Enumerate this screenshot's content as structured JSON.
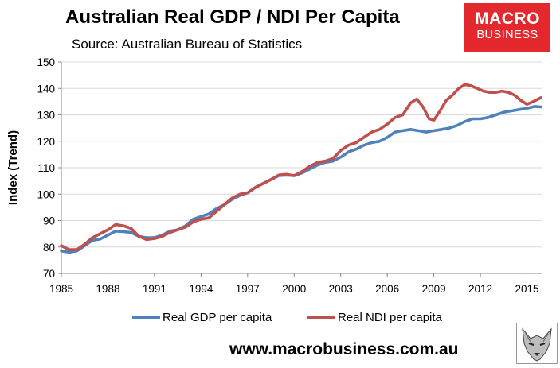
{
  "header": {
    "title": "Australian Real GDP / NDI Per Capita",
    "source": "Source: Australian Bureau of Statistics"
  },
  "logo": {
    "line1": "MACRO",
    "line2": "BUSINESS",
    "color": "#e3282e"
  },
  "footer": {
    "url": "www.macrobusiness.com.au",
    "mascot_icon": "wolf-icon"
  },
  "chart_data": {
    "type": "line",
    "title": "Australian Real GDP / NDI Per Capita",
    "xlabel": "",
    "ylabel": "Index (Trend)",
    "xlim": [
      1985,
      2016
    ],
    "ylim": [
      70,
      150
    ],
    "yticks": [
      70,
      80,
      90,
      100,
      110,
      120,
      130,
      140,
      150
    ],
    "xticks": [
      1985,
      1988,
      1991,
      1994,
      1997,
      2000,
      2003,
      2006,
      2009,
      2012,
      2015
    ],
    "grid": "horizontal",
    "legend": "bottom",
    "series": [
      {
        "name": "Real GDP per capita",
        "color": "#4f81bd",
        "x": [
          1985,
          1985.5,
          1986,
          1986.5,
          1987,
          1987.5,
          1988,
          1988.5,
          1989,
          1989.5,
          1990,
          1990.5,
          1991,
          1991.5,
          1992,
          1992.5,
          1993,
          1993.5,
          1994,
          1994.5,
          1995,
          1995.5,
          1996,
          1996.5,
          1997,
          1997.5,
          1998,
          1998.5,
          1999,
          1999.5,
          2000,
          2000.5,
          2001,
          2001.5,
          2002,
          2002.5,
          2003,
          2003.5,
          2004,
          2004.5,
          2005,
          2005.5,
          2006,
          2006.5,
          2007,
          2007.5,
          2008,
          2008.5,
          2009,
          2009.5,
          2010,
          2010.5,
          2011,
          2011.5,
          2012,
          2012.5,
          2013,
          2013.5,
          2014,
          2014.5,
          2015,
          2015.5,
          2015.9
        ],
        "values": [
          78.5,
          78,
          78.5,
          80.5,
          82.5,
          83,
          84.5,
          86,
          85.8,
          85.5,
          84,
          83.5,
          83.5,
          84.5,
          86,
          86.5,
          88,
          90.5,
          91.5,
          92.5,
          94.5,
          96,
          98,
          99.5,
          100.5,
          102.5,
          104,
          105.5,
          107,
          107.2,
          107,
          108,
          109.5,
          111,
          112,
          112.5,
          114,
          116,
          117,
          118.5,
          119.5,
          120,
          121.5,
          123.5,
          124,
          124.5,
          124,
          123.5,
          124,
          124.5,
          125,
          126,
          127.5,
          128.5,
          128.5,
          129,
          130,
          131,
          131.5,
          132,
          132.5,
          133.2,
          133
        ]
      },
      {
        "name": "Real NDI per capita",
        "color": "#c0504d",
        "x": [
          1985,
          1985.5,
          1986,
          1986.5,
          1987,
          1987.5,
          1988,
          1988.5,
          1989,
          1989.5,
          1990,
          1990.5,
          1991,
          1991.5,
          1992,
          1992.5,
          1993,
          1993.5,
          1994,
          1994.5,
          1995,
          1995.5,
          1996,
          1996.5,
          1997,
          1997.5,
          1998,
          1998.5,
          1999,
          1999.5,
          2000,
          2000.5,
          2001,
          2001.5,
          2002,
          2002.5,
          2003,
          2003.5,
          2004,
          2004.5,
          2005,
          2005.5,
          2006,
          2006.5,
          2007,
          2007.5,
          2007.9,
          2008.3,
          2008.7,
          2009,
          2009.4,
          2009.8,
          2010.2,
          2010.6,
          2011,
          2011.4,
          2011.8,
          2012.2,
          2012.6,
          2013,
          2013.4,
          2013.8,
          2014.2,
          2014.6,
          2015,
          2015.4,
          2015.9
        ],
        "values": [
          80.5,
          79,
          79,
          81,
          83.5,
          85,
          86.5,
          88.5,
          88,
          87,
          84,
          82.8,
          83.2,
          84,
          85.5,
          86.5,
          87.5,
          89.5,
          90.5,
          91,
          93.5,
          96,
          98.5,
          100,
          100.5,
          102.5,
          104,
          105.5,
          107.2,
          107.5,
          107,
          108.5,
          110.5,
          112,
          112.5,
          113.5,
          116.5,
          118.5,
          119.5,
          121.5,
          123.5,
          124.5,
          126.5,
          129,
          130,
          134.5,
          136,
          133,
          128.5,
          128,
          131.5,
          135.5,
          137.5,
          140,
          141.5,
          141,
          140,
          139,
          138.5,
          138.5,
          139,
          138.5,
          137.5,
          135.5,
          134,
          135,
          136.5
        ]
      }
    ]
  }
}
